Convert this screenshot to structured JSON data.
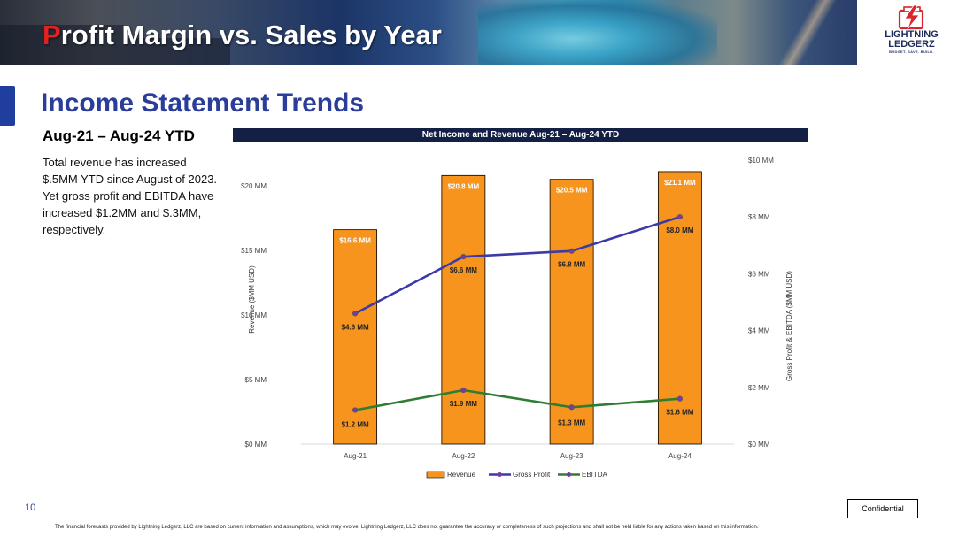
{
  "header": {
    "title_first_letter": "P",
    "title_rest": "rofit Margin vs. Sales by Year",
    "logo": {
      "line1": "LIGHTNING",
      "line2": "LEDGERZ",
      "tagline": "BUDGET. SAVE. BUILD."
    }
  },
  "section": {
    "heading": "Income Statement Trends",
    "subheading": "Aug-21 – Aug-24 YTD",
    "body": "Total revenue has increased $.5MM YTD since August of 2023. Yet gross profit and EBITDA have increased $1.2MM and $.3MM, respectively."
  },
  "footer": {
    "page_number": "10",
    "confidential": "Confidential",
    "disclaimer": "The financial forecasts provided by Lightning Ledgerz, LLC are based on current information and assumptions, which may evolve. Lightning Ledgerz, LLC does not guarantee the accuracy or completeness of such projections and shall not be held liable for any actions taken based on this information."
  },
  "colors": {
    "bar": "#f7941d",
    "gross_profit": "#3a3aa8",
    "ebitda": "#2e7d32",
    "marker": "#7a3aa0",
    "title_bar": "#131f44"
  },
  "chart_data": {
    "type": "bar",
    "title": "Net Income and Revenue Aug-21 – Aug-24 YTD",
    "categories": [
      "Aug-21",
      "Aug-22",
      "Aug-23",
      "Aug-24"
    ],
    "ylabel": "Revenue ($MM USD)",
    "y2label": "Gross Profit & EBITDA ($MM USD)",
    "ylim": [
      0,
      22
    ],
    "y2lim": [
      0,
      10
    ],
    "yticks": [
      0,
      5,
      10,
      15,
      20
    ],
    "yticklabels": [
      "$0 MM",
      "$5 MM",
      "$10 MM",
      "$15 MM",
      "$20 MM"
    ],
    "y2ticks": [
      0,
      2,
      4,
      6,
      8,
      10
    ],
    "y2ticklabels": [
      "$0 MM",
      "$2 MM",
      "$4 MM",
      "$6 MM",
      "$8 MM",
      "$10 MM"
    ],
    "series": [
      {
        "name": "Revenue",
        "type": "bar",
        "axis": "left",
        "values": [
          16.6,
          20.8,
          20.5,
          21.1
        ],
        "labels": [
          "$16.6 MM",
          "$20.8 MM",
          "$20.5 MM",
          "$21.1 MM"
        ]
      },
      {
        "name": "Gross Profit",
        "type": "line",
        "axis": "right",
        "values": [
          4.6,
          6.6,
          6.8,
          8.0
        ],
        "labels": [
          "$4.6 MM",
          "$6.6 MM",
          "$6.8 MM",
          "$8.0 MM"
        ]
      },
      {
        "name": "EBITDA",
        "type": "line",
        "axis": "right",
        "values": [
          1.2,
          1.9,
          1.3,
          1.6
        ],
        "labels": [
          "$1.2 MM",
          "$1.9 MM",
          "$1.3 MM",
          "$1.6 MM"
        ]
      }
    ],
    "legend": "bottom-center",
    "grid": false
  }
}
